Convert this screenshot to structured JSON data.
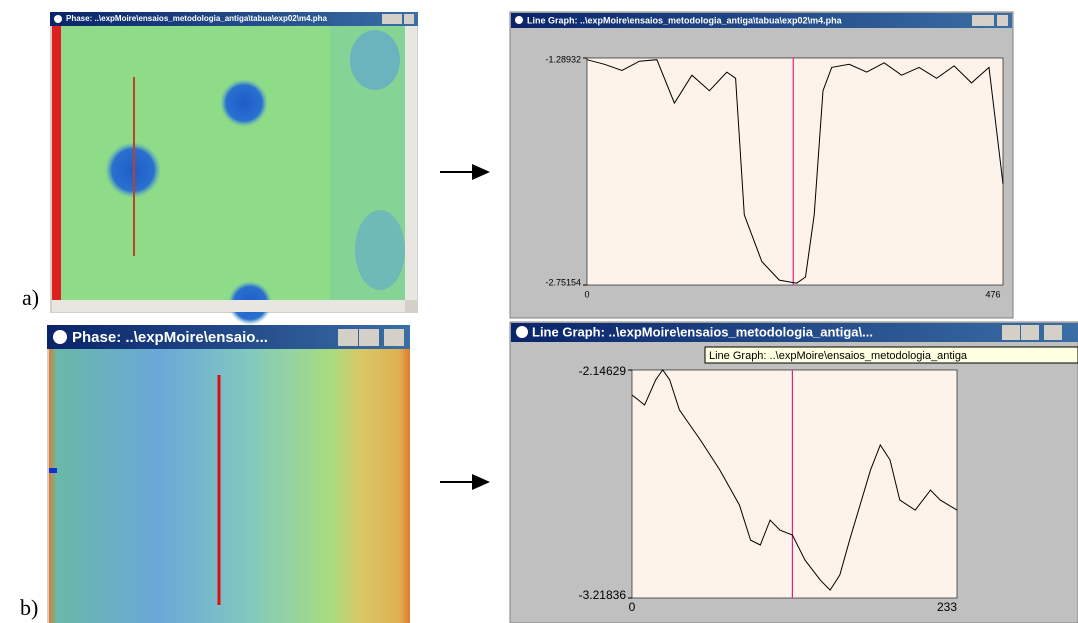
{
  "panels": [
    {
      "label": "a)",
      "image_window": {
        "title": "Phase:  ..\\expMoire\\ensaios_metodologia_antiga\\tabua\\exp02\\m4.pha"
      },
      "graph_window": {
        "title": "Line Graph:  ..\\expMoire\\ensaios_metodologia_antiga\\tabua\\exp02\\m4.pha"
      },
      "graph": {
        "type": "line",
        "ylim": [
          -2.75154,
          -1.28932
        ],
        "xlim": [
          0,
          476
        ],
        "x": [
          0,
          20,
          40,
          60,
          80,
          100,
          120,
          140,
          160,
          170,
          180,
          200,
          220,
          240,
          250,
          260,
          270,
          280,
          300,
          320,
          340,
          360,
          380,
          400,
          420,
          440,
          460,
          476
        ],
        "values": [
          -1.3,
          -1.33,
          -1.37,
          -1.31,
          -1.3,
          -1.58,
          -1.4,
          -1.5,
          -1.38,
          -1.42,
          -2.3,
          -2.6,
          -2.72,
          -2.74,
          -2.7,
          -2.3,
          -1.5,
          -1.35,
          -1.33,
          -1.38,
          -1.32,
          -1.4,
          -1.35,
          -1.42,
          -1.34,
          -1.45,
          -1.35,
          -2.1
        ],
        "cursor": 236,
        "color": "#000000",
        "cursor_color": "#e0208a"
      }
    },
    {
      "label": "b)",
      "image_window": {
        "title": "Phase:  ..\\expMoire\\ensaio..."
      },
      "graph_window": {
        "title": "Line Graph:  ..\\expMoire\\ensaios_metodologia_antiga\\...",
        "tooltip": "Line Graph:  ..\\expMoire\\ensaios_metodologia_antiga"
      },
      "graph": {
        "type": "line",
        "ylim": [
          -3.21836,
          -2.14629
        ],
        "xlim": [
          0,
          233
        ],
        "x": [
          0,
          9,
          17,
          22,
          27,
          34,
          49,
          63,
          77,
          85,
          92,
          99,
          106,
          115,
          124,
          135,
          142,
          149,
          156,
          171,
          178,
          185,
          192,
          203,
          214,
          221,
          233
        ],
        "values": [
          -2.264,
          -2.311,
          -2.193,
          -2.146,
          -2.193,
          -2.334,
          -2.475,
          -2.617,
          -2.781,
          -2.946,
          -2.969,
          -2.852,
          -2.899,
          -2.922,
          -3.04,
          -3.134,
          -3.181,
          -3.11,
          -2.946,
          -2.617,
          -2.499,
          -2.569,
          -2.758,
          -2.805,
          -2.711,
          -2.758,
          -2.805
        ],
        "cursor": 115,
        "color": "#000000",
        "cursor_color": "#e0208a"
      }
    }
  ]
}
